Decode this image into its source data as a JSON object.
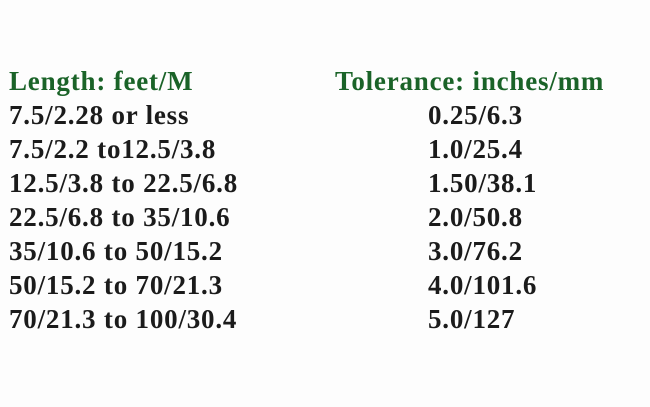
{
  "colors": {
    "page_background": "#fdfdfd",
    "header_green": "#1a6328",
    "text_black": "#1b1b1b"
  },
  "table": {
    "columns": [
      {
        "header": "Length: feet/M",
        "rows": [
          "7.5/2.28 or less",
          "7.5/2.2 to12.5/3.8",
          "12.5/3.8 to 22.5/6.8",
          "22.5/6.8 to 35/10.6",
          "35/10.6 to 50/15.2",
          "50/15.2 to 70/21.3",
          "70/21.3 to 100/30.4"
        ]
      },
      {
        "header": "Tolerance: inches/mm",
        "rows": [
          "0.25/6.3",
          "1.0/25.4",
          "1.50/38.1",
          "2.0/50.8",
          "3.0/76.2",
          "4.0/101.6",
          "5.0/127"
        ]
      }
    ]
  }
}
